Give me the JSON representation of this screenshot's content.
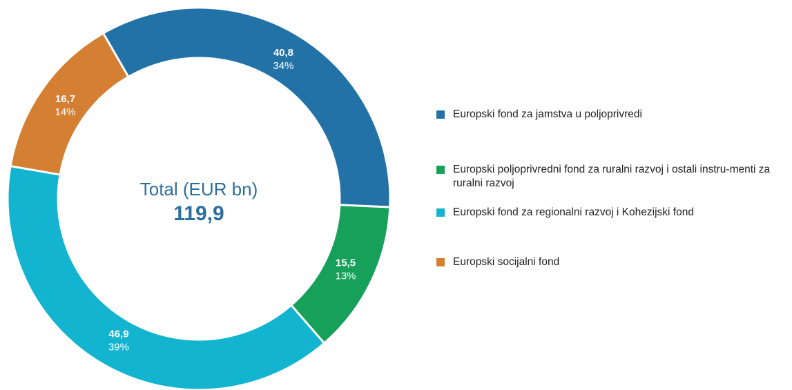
{
  "chart_data": {
    "type": "donut",
    "center_label": "Total (EUR bn)",
    "total": 119.9,
    "total_label": "119,9",
    "series": [
      {
        "name": "Europski fond za jamstva u poljoprivredi",
        "color": "#2272a8",
        "values": [
          40.8
        ],
        "value_labels": [
          "40,8"
        ],
        "shares": [
          34
        ],
        "share_labels": [
          "34%"
        ]
      },
      {
        "name": "Europski poljoprivredni fond za ruralni razvoj i ostali instru-menti za ruralni razvoj",
        "color": "#16a05a",
        "values": [
          15.5
        ],
        "value_labels": [
          "15,5"
        ],
        "shares": [
          13
        ],
        "share_labels": [
          "13%"
        ]
      },
      {
        "name": "Europski fond za regionalni razvoj i Kohezijski fond",
        "color": "#12b4d0",
        "values": [
          46.9
        ],
        "value_labels": [
          "46,9"
        ],
        "shares": [
          39
        ],
        "share_labels": [
          "39%"
        ]
      },
      {
        "name": "Europski socijalni fond",
        "color": "#d57f32",
        "values": [
          16.7
        ],
        "value_labels": [
          "16,7"
        ],
        "shares": [
          14
        ],
        "share_labels": [
          "14%"
        ]
      }
    ]
  }
}
